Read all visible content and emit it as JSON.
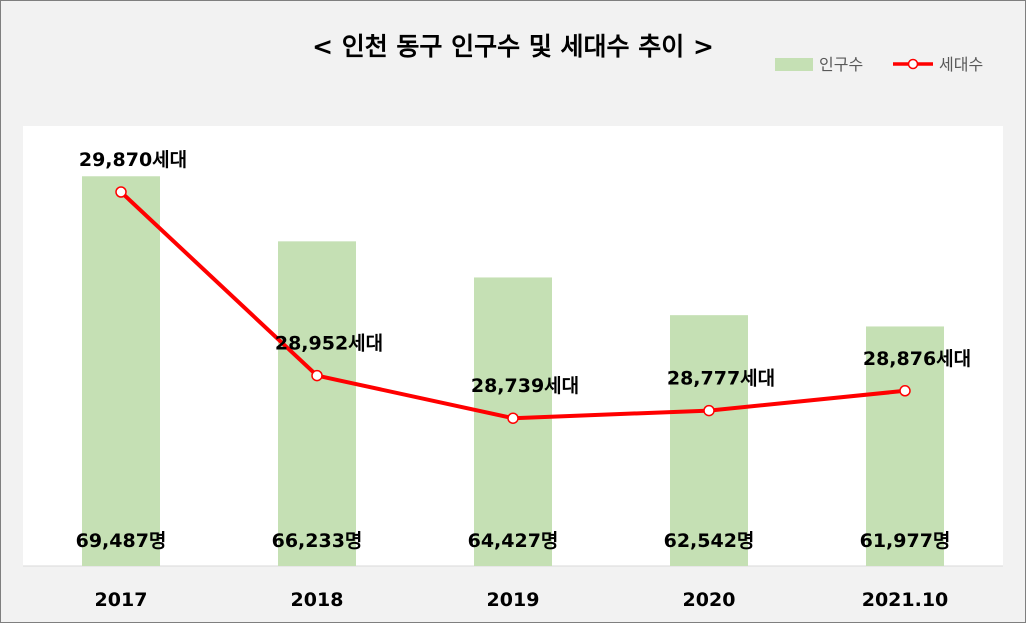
{
  "chart_data": {
    "type": "bar",
    "title": "< 인천 동구 인구수 및 세대수 추이 >",
    "categories": [
      "2017",
      "2018",
      "2019",
      "2020",
      "2021.10"
    ],
    "series": [
      {
        "name": "인구수",
        "type": "bar",
        "axis": "left",
        "values": [
          69487,
          66233,
          64427,
          62542,
          61977
        ],
        "labels": [
          "69,487명",
          "66,233명",
          "64,427명",
          "62,542명",
          "61,977명"
        ]
      },
      {
        "name": "세대수",
        "type": "line",
        "axis": "right",
        "values": [
          29870,
          28952,
          28739,
          28777,
          28876
        ],
        "labels": [
          "29,870세대",
          "28,952세대",
          "28,739세대",
          "28,777세대",
          "28,876세대"
        ]
      }
    ],
    "legend_position": "top-right",
    "grid": false
  },
  "colors": {
    "bar": "#c5e0b4",
    "line": "#ff0000",
    "plot_background": "#ffffff",
    "chart_background": "#f2f2f2"
  }
}
